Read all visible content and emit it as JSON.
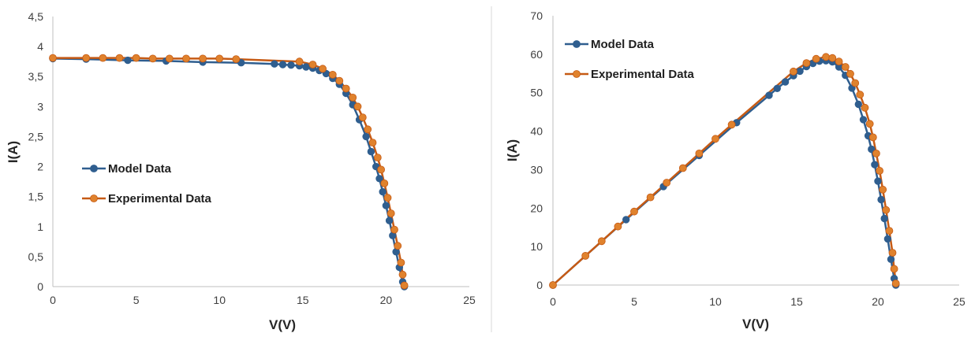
{
  "colors": {
    "model": "#2f5e8f",
    "experimental": "#c65a14",
    "experimental_marker": "#e0822d",
    "divider": "#d9d9d9",
    "axis": "#bfbfbf"
  },
  "chart_data": [
    {
      "type": "line",
      "xlabel": "V(V)",
      "ylabel": "I(A)",
      "xlim": [
        0,
        25
      ],
      "ylim": [
        0,
        4.5
      ],
      "xticks": [
        0,
        5,
        10,
        15,
        20,
        25
      ],
      "xtick_labels": [
        "0",
        "5",
        "10",
        "15",
        "20",
        "25"
      ],
      "yticks": [
        0,
        0.5,
        1,
        1.5,
        2,
        2.5,
        3,
        3.5,
        4,
        4.5
      ],
      "ytick_labels": [
        "0",
        "0,5",
        "1",
        "1,5",
        "2",
        "2,5",
        "3",
        "3,5",
        "4",
        "4,5"
      ],
      "grid": false,
      "legend_position": "left-middle",
      "series": [
        {
          "name": "Model Data",
          "color": "#2f5e8f",
          "x": [
            0,
            2,
            4.5,
            6.8,
            9,
            11.3,
            13.3,
            13.8,
            14.3,
            14.8,
            15.2,
            15.6,
            16,
            16.4,
            16.8,
            17.2,
            17.6,
            18,
            18.4,
            18.8,
            19.1,
            19.4,
            19.6,
            19.8,
            20,
            20.2,
            20.4,
            20.6,
            20.8,
            21,
            21.1
          ],
          "y": [
            3.8,
            3.79,
            3.77,
            3.76,
            3.74,
            3.73,
            3.71,
            3.7,
            3.69,
            3.68,
            3.66,
            3.64,
            3.6,
            3.55,
            3.47,
            3.37,
            3.22,
            3.03,
            2.78,
            2.5,
            2.25,
            2.0,
            1.8,
            1.58,
            1.35,
            1.1,
            0.85,
            0.58,
            0.32,
            0.08,
            0.0
          ]
        },
        {
          "name": "Experimental Data",
          "color": "#c65a14",
          "x": [
            0,
            2,
            3,
            4,
            5,
            6,
            7,
            8,
            9,
            10,
            11,
            14.8,
            15.6,
            16.2,
            16.8,
            17.2,
            17.6,
            18,
            18.3,
            18.6,
            18.9,
            19.2,
            19.5,
            19.7,
            19.9,
            20.1,
            20.3,
            20.5,
            20.7,
            20.9,
            21.0,
            21.1
          ],
          "y": [
            3.81,
            3.81,
            3.81,
            3.81,
            3.81,
            3.8,
            3.8,
            3.8,
            3.8,
            3.8,
            3.79,
            3.75,
            3.7,
            3.63,
            3.53,
            3.43,
            3.3,
            3.15,
            3.0,
            2.82,
            2.62,
            2.4,
            2.15,
            1.95,
            1.72,
            1.48,
            1.22,
            0.95,
            0.68,
            0.4,
            0.2,
            0.02
          ]
        }
      ]
    },
    {
      "type": "line",
      "xlabel": "V(V)",
      "ylabel": "I(A)",
      "xlim": [
        0,
        25
      ],
      "ylim": [
        0,
        70
      ],
      "xticks": [
        0,
        5,
        10,
        15,
        20,
        25
      ],
      "xtick_labels": [
        "0",
        "5",
        "10",
        "15",
        "20",
        "25"
      ],
      "yticks": [
        0,
        10,
        20,
        30,
        40,
        50,
        60,
        70
      ],
      "ytick_labels": [
        "0",
        "10",
        "20",
        "30",
        "40",
        "50",
        "60",
        "70"
      ],
      "grid": false,
      "legend_position": "top-left",
      "series": [
        {
          "name": "Model Data",
          "color": "#2f5e8f",
          "x": [
            0,
            2,
            4.5,
            6.8,
            9,
            11.3,
            13.3,
            13.8,
            14.3,
            14.8,
            15.2,
            15.6,
            16,
            16.4,
            16.8,
            17.2,
            17.6,
            18,
            18.4,
            18.8,
            19.1,
            19.4,
            19.6,
            19.8,
            20,
            20.2,
            20.4,
            20.6,
            20.8,
            21,
            21.1
          ],
          "y": [
            0,
            7.6,
            17.0,
            25.6,
            33.7,
            42.2,
            49.3,
            51.1,
            52.8,
            54.4,
            55.6,
            56.8,
            57.6,
            58.2,
            58.3,
            58.0,
            56.7,
            54.5,
            51.2,
            47.0,
            43.0,
            38.8,
            35.3,
            31.3,
            27.0,
            22.2,
            17.3,
            12.0,
            6.7,
            1.7,
            0.0
          ]
        },
        {
          "name": "Experimental Data",
          "color": "#c65a14",
          "x": [
            0,
            2,
            3,
            4,
            5,
            6,
            7,
            8,
            9,
            10,
            11,
            14.8,
            15.6,
            16.2,
            16.8,
            17.2,
            17.6,
            18,
            18.3,
            18.6,
            18.9,
            19.2,
            19.5,
            19.7,
            19.9,
            20.1,
            20.3,
            20.5,
            20.7,
            20.9,
            21.0,
            21.1
          ],
          "y": [
            0,
            7.6,
            11.4,
            15.2,
            19.1,
            22.8,
            26.6,
            30.4,
            34.2,
            38.0,
            41.7,
            55.5,
            57.7,
            58.8,
            59.3,
            59.0,
            58.1,
            56.7,
            54.9,
            52.5,
            49.5,
            46.1,
            41.9,
            38.4,
            34.2,
            29.7,
            24.8,
            19.5,
            14.1,
            8.4,
            4.2,
            0.4
          ]
        }
      ]
    }
  ]
}
